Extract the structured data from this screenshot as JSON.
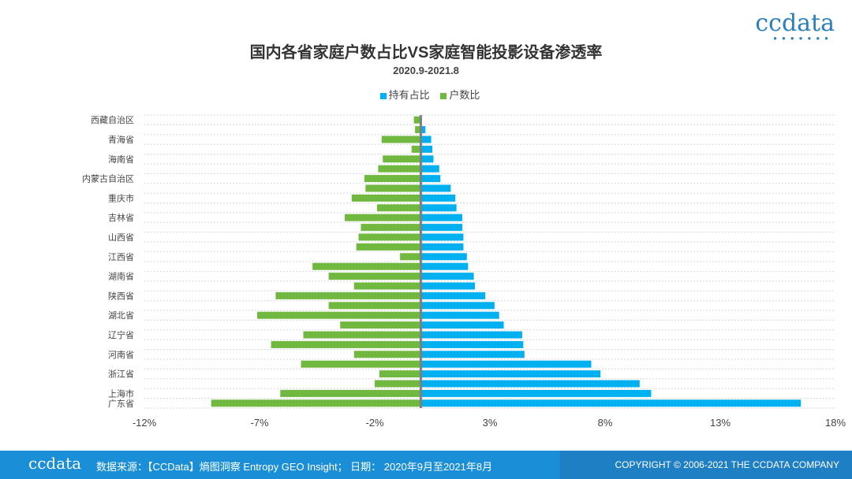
{
  "logo": "ccdata",
  "footer": {
    "logo": "ccdata",
    "source": "数据来源：【CCData】熵图洞察 Entropy GEO Insight； 日期： 2020年9月至2021年8月",
    "copyright": "COPYRIGHT © 2006-2021 THE CCDATA COMPANY"
  },
  "colors": {
    "holding": "#00b0f0",
    "households": "#70b840",
    "center_line": "#7f7f7f",
    "grid": "#d9d9d9"
  },
  "chart_data": {
    "type": "bar",
    "orientation": "horizontal",
    "title": "国内各省家庭户数占比VS家庭智能投影设备渗透率",
    "subtitle": "2020.9-2021.8",
    "legend_position": "top",
    "grid": true,
    "xlim": [
      -12,
      18
    ],
    "x_ticks": [
      "-12%",
      "-7%",
      "-2%",
      "3%",
      "8%",
      "13%",
      "18%"
    ],
    "series": [
      {
        "name": "持有占比",
        "color": "#00b0f0",
        "values": [
          0.05,
          0.2,
          0.45,
          0.5,
          0.55,
          0.8,
          0.85,
          1.3,
          1.5,
          1.55,
          1.8,
          1.8,
          1.85,
          1.85,
          2.0,
          2.05,
          2.3,
          2.35,
          2.8,
          3.2,
          3.4,
          3.6,
          4.4,
          4.45,
          4.5,
          7.4,
          7.8,
          9.5,
          10.0,
          16.5
        ]
      },
      {
        "name": "户数比",
        "color": "#70b840",
        "values": [
          -0.3,
          -0.25,
          -1.7,
          -0.4,
          -1.65,
          -1.85,
          -2.45,
          -2.4,
          -3.0,
          -1.9,
          -3.3,
          -2.6,
          -2.7,
          -2.8,
          -0.9,
          -4.7,
          -4.0,
          -2.9,
          -6.3,
          -4.0,
          -7.1,
          -3.5,
          -5.1,
          -6.5,
          -2.9,
          -5.2,
          -1.8,
          -2.0,
          -6.1,
          -9.1
        ]
      }
    ],
    "category_labels": [
      {
        "label": "西藏自治区",
        "index": 0
      },
      {
        "label": "青海省",
        "index": 2
      },
      {
        "label": "海南省",
        "index": 4
      },
      {
        "label": "内蒙古自治区",
        "index": 6
      },
      {
        "label": "重庆市",
        "index": 8
      },
      {
        "label": "吉林省",
        "index": 10
      },
      {
        "label": "山西省",
        "index": 12
      },
      {
        "label": "江西省",
        "index": 14
      },
      {
        "label": "湖南省",
        "index": 16
      },
      {
        "label": "陕西省",
        "index": 18
      },
      {
        "label": "湖北省",
        "index": 20
      },
      {
        "label": "辽宁省",
        "index": 22
      },
      {
        "label": "河南省",
        "index": 24
      },
      {
        "label": "浙江省",
        "index": 26
      },
      {
        "label": "上海市",
        "index": 28
      },
      {
        "label": "广东省",
        "index": 29
      }
    ]
  }
}
